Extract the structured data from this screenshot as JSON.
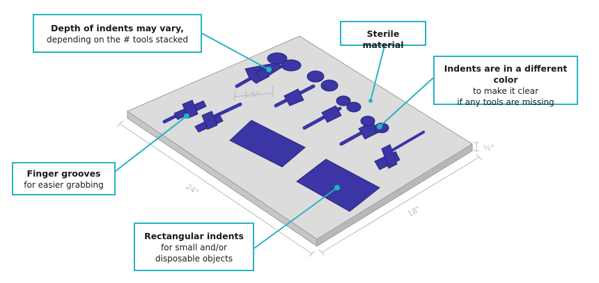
{
  "callouts": {
    "depth": {
      "heading": "Depth of indents may vary,",
      "text": "depending on the # tools stacked"
    },
    "sterile": {
      "heading": "Sterile material"
    },
    "color": {
      "heading": "Indents are in a different color",
      "line1": "to make it clear",
      "line2": "if any tools are missing"
    },
    "finger": {
      "heading": "Finger grooves",
      "text": "for easier grabbing"
    },
    "rect": {
      "heading": "Rectangular indents",
      "line1": "for small and/or",
      "line2": "disposable objects"
    }
  },
  "dimensions": {
    "gap": "1.5\"",
    "length": "24\"",
    "width": "18\"",
    "thickness": "½\""
  },
  "colors": {
    "accent": "#23b3c2",
    "indent": "#3b35a6",
    "tray_top": "#dcdcdc",
    "tray_side": "#c4c4c4",
    "dimension_lines": "#b9b9b9"
  }
}
